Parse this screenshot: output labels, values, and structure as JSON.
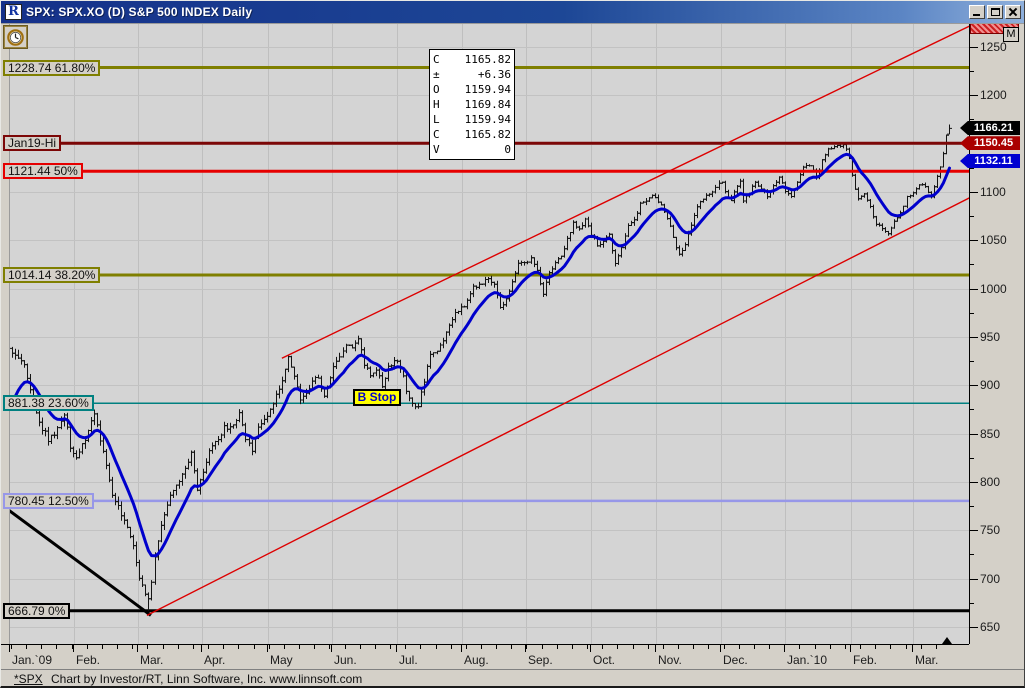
{
  "window": {
    "title": "SPX: SPX.XO (D) S&P 500 INDEX Daily",
    "icon_letter": "R"
  },
  "m_button_label": "M",
  "data_window": {
    "rows": [
      [
        "C",
        "1165.82"
      ],
      [
        "±",
        "+6.36"
      ],
      [
        "O",
        "1159.94"
      ],
      [
        "H",
        "1169.84"
      ],
      [
        "L",
        "1159.94"
      ],
      [
        "C",
        "1165.82"
      ],
      [
        "V",
        "0"
      ]
    ]
  },
  "status_bar": {
    "symbol": "*SPX",
    "credit": "Chart by Investor/RT, Linn Software, Inc. www.linnsoft.com"
  },
  "chart_data": {
    "type": "ohlc-bar",
    "title": "S&P 500 INDEX Daily",
    "bars_count": 310,
    "y_axis": {
      "min": 650,
      "max": 1250,
      "major_step": 50,
      "minor_step": 25
    },
    "x_months": [
      {
        "label": "Jan.`09",
        "day": -0.6
      },
      {
        "label": "Feb.",
        "day": 20.4
      },
      {
        "label": "Mar.",
        "day": 41.6
      },
      {
        "label": "Apr.",
        "day": 62.7
      },
      {
        "label": "May",
        "day": 84.4
      },
      {
        "label": "Jun.",
        "day": 105.5
      },
      {
        "label": "Jul.",
        "day": 127.0
      },
      {
        "label": "Aug.",
        "day": 148.4
      },
      {
        "label": "Sep.",
        "day": 169.5
      },
      {
        "label": "Oct.",
        "day": 191.0
      },
      {
        "label": "Nov.",
        "day": 212.4
      },
      {
        "label": "Dec.",
        "day": 233.8
      },
      {
        "label": "Jan.`10",
        "day": 254.9
      },
      {
        "label": "Feb.",
        "day": 276.7
      },
      {
        "label": "Mar.",
        "day": 297.2
      }
    ],
    "close_anchors": [
      [
        0,
        932
      ],
      [
        3,
        927
      ],
      [
        5,
        910
      ],
      [
        8,
        870
      ],
      [
        12,
        843
      ],
      [
        14,
        850
      ],
      [
        17,
        872
      ],
      [
        19,
        838
      ],
      [
        21,
        826
      ],
      [
        24,
        845
      ],
      [
        27,
        869
      ],
      [
        30,
        833
      ],
      [
        33,
        789
      ],
      [
        36,
        765
      ],
      [
        38,
        753
      ],
      [
        40,
        735
      ],
      [
        42,
        700
      ],
      [
        44,
        683
      ],
      [
        45,
        677
      ],
      [
        47,
        720
      ],
      [
        49,
        756
      ],
      [
        51,
        778
      ],
      [
        53,
        794
      ],
      [
        56,
        806
      ],
      [
        58,
        823
      ],
      [
        59,
        832
      ],
      [
        61,
        790
      ],
      [
        63,
        811
      ],
      [
        65,
        835
      ],
      [
        68,
        842
      ],
      [
        70,
        856
      ],
      [
        73,
        858
      ],
      [
        75,
        870
      ],
      [
        77,
        843
      ],
      [
        79,
        832
      ],
      [
        81,
        855
      ],
      [
        83,
        866
      ],
      [
        85,
        873
      ],
      [
        87,
        889
      ],
      [
        89,
        907
      ],
      [
        91,
        929
      ],
      [
        93,
        909
      ],
      [
        95,
        883
      ],
      [
        97,
        893
      ],
      [
        99,
        903
      ],
      [
        101,
        909
      ],
      [
        103,
        888
      ],
      [
        105,
        910
      ],
      [
        107,
        925
      ],
      [
        110,
        940
      ],
      [
        112,
        939
      ],
      [
        114,
        946
      ],
      [
        116,
        923
      ],
      [
        118,
        911
      ],
      [
        120,
        918
      ],
      [
        122,
        900
      ],
      [
        124,
        918
      ],
      [
        126,
        927
      ],
      [
        128,
        919
      ],
      [
        130,
        896
      ],
      [
        132,
        881
      ],
      [
        134,
        879
      ],
      [
        136,
        905
      ],
      [
        138,
        932
      ],
      [
        141,
        940
      ],
      [
        143,
        954
      ],
      [
        146,
        976
      ],
      [
        148,
        979
      ],
      [
        150,
        986
      ],
      [
        152,
        1002
      ],
      [
        155,
        1005
      ],
      [
        157,
        1010
      ],
      [
        159,
        1004
      ],
      [
        161,
        979
      ],
      [
        163,
        989
      ],
      [
        165,
        1007
      ],
      [
        167,
        1026
      ],
      [
        169,
        1028
      ],
      [
        171,
        1030
      ],
      [
        173,
        1020
      ],
      [
        175,
        994
      ],
      [
        177,
        1016
      ],
      [
        179,
        1025
      ],
      [
        181,
        1033
      ],
      [
        183,
        1052
      ],
      [
        185,
        1068
      ],
      [
        187,
        1060
      ],
      [
        189,
        1071
      ],
      [
        191,
        1057
      ],
      [
        193,
        1044
      ],
      [
        195,
        1050
      ],
      [
        197,
        1057
      ],
      [
        199,
        1025
      ],
      [
        201,
        1042
      ],
      [
        203,
        1065
      ],
      [
        205,
        1071
      ],
      [
        207,
        1087
      ],
      [
        209,
        1092
      ],
      [
        211,
        1098
      ],
      [
        213,
        1091
      ],
      [
        215,
        1080
      ],
      [
        217,
        1066
      ],
      [
        219,
        1042
      ],
      [
        220,
        1036
      ],
      [
        222,
        1046
      ],
      [
        224,
        1066
      ],
      [
        226,
        1085
      ],
      [
        228,
        1093
      ],
      [
        230,
        1098
      ],
      [
        232,
        1105
      ],
      [
        234,
        1110
      ],
      [
        236,
        1094
      ],
      [
        237,
        1091
      ],
      [
        239,
        1106
      ],
      [
        240,
        1111
      ],
      [
        241,
        1091
      ],
      [
        243,
        1100
      ],
      [
        245,
        1109
      ],
      [
        247,
        1104
      ],
      [
        249,
        1096
      ],
      [
        251,
        1106
      ],
      [
        253,
        1114
      ],
      [
        255,
        1102
      ],
      [
        257,
        1096
      ],
      [
        259,
        1110
      ],
      [
        261,
        1126
      ],
      [
        263,
        1128
      ],
      [
        265,
        1115
      ],
      [
        267,
        1132
      ],
      [
        269,
        1145
      ],
      [
        271,
        1146
      ],
      [
        273,
        1148
      ],
      [
        274,
        1150
      ],
      [
        276,
        1136
      ],
      [
        277,
        1116
      ],
      [
        279,
        1092
      ],
      [
        281,
        1097
      ],
      [
        283,
        1084
      ],
      [
        285,
        1066
      ],
      [
        287,
        1063
      ],
      [
        289,
        1056
      ],
      [
        291,
        1070
      ],
      [
        293,
        1078
      ],
      [
        295,
        1095
      ],
      [
        297,
        1099
      ],
      [
        299,
        1108
      ],
      [
        301,
        1105
      ],
      [
        303,
        1096
      ],
      [
        305,
        1116
      ],
      [
        306,
        1125
      ],
      [
        307,
        1139
      ],
      [
        308,
        1158
      ],
      [
        309,
        1166
      ]
    ],
    "last_bar": {
      "open": 1159.94,
      "high": 1169.84,
      "low": 1159.94,
      "close": 1165.82
    },
    "low_anchor": {
      "day": 45,
      "price": 666.79
    },
    "high_anchor": {
      "day": 274,
      "price": 1150.45
    },
    "ma": {
      "type": "EMA",
      "period": 12,
      "seed": 872,
      "color": "#0000cc",
      "last_value": 1132.11
    },
    "fib_levels": [
      {
        "label": "1228.74 61.80%",
        "price": 1228.74,
        "color": "#7f7f00",
        "width": 3,
        "over_bars": false
      },
      {
        "label": "Jan19-Hi",
        "price": 1150.45,
        "color": "#7c0707",
        "width": 3,
        "over_bars": true
      },
      {
        "label": "1121.44 50%",
        "price": 1121.44,
        "color": "#e60000",
        "width": 3,
        "over_bars": true
      },
      {
        "label": "1014.14 38.20%",
        "price": 1014.14,
        "color": "#7f7f00",
        "width": 3,
        "over_bars": false
      },
      {
        "label": "881.38 23.60%",
        "price": 881.38,
        "color": "#008080",
        "width": 1.5,
        "over_bars": false
      },
      {
        "label": "780.45 12.50%",
        "price": 780.45,
        "color": "#9797e8",
        "width": 2.5,
        "over_bars": false
      },
      {
        "label": "666.79 0%",
        "price": 666.79,
        "color": "#000000",
        "width": 3,
        "over_bars": false
      }
    ],
    "trendlines": [
      {
        "name": "downtrend-line",
        "color": "#000000",
        "width": 3,
        "from": {
          "day": -3.3,
          "price": 776
        },
        "to": {
          "day": 45.8,
          "price": 662
        }
      },
      {
        "name": "channel-lower-line",
        "color": "#dd0000",
        "width": 1.4,
        "from": {
          "day": 44.5,
          "price": 662
        },
        "to": {
          "day": 318.3,
          "price": 1098
        }
      },
      {
        "name": "channel-upper-line",
        "color": "#dd0000",
        "width": 1.4,
        "from": {
          "day": 89,
          "price": 928
        },
        "to": {
          "day": 316,
          "price": 1272
        }
      }
    ],
    "annotations": {
      "b_stop": {
        "label": "B Stop",
        "day": 113,
        "price": 887
      }
    },
    "price_tags": [
      {
        "label": "1166.21",
        "price": 1166.21,
        "color": "#000000"
      },
      {
        "label": "1150.45",
        "price": 1150.45,
        "color": "#aa0000"
      },
      {
        "label": "1132.11",
        "price": 1132.11,
        "color": "#0000d0"
      }
    ]
  }
}
